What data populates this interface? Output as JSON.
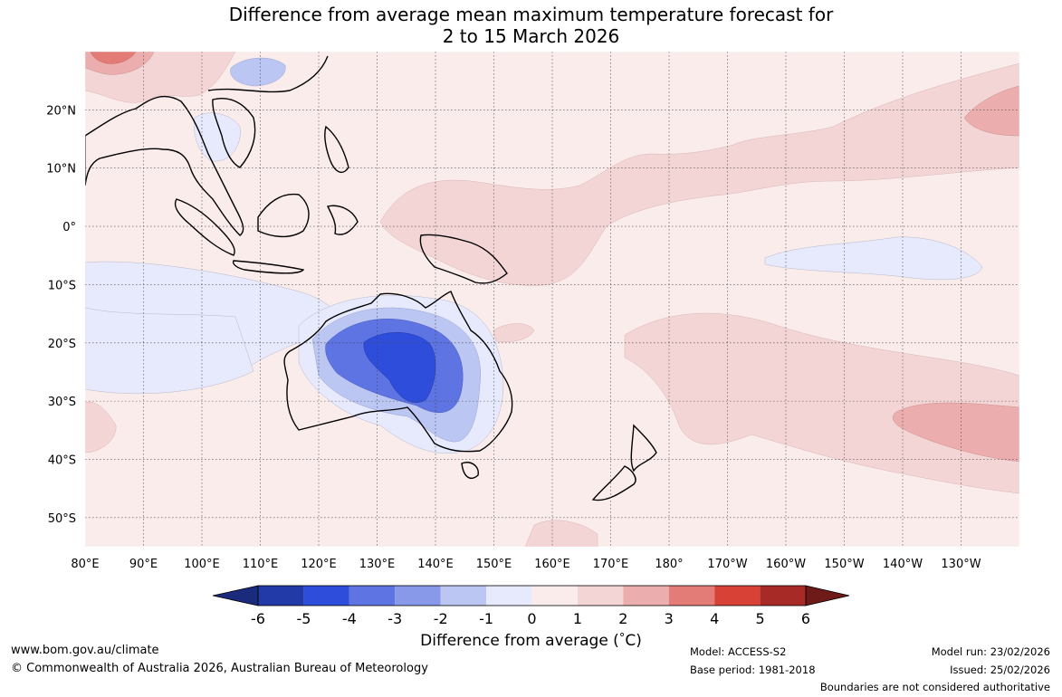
{
  "title": {
    "line1": "Difference from average mean maximum temperature forecast for",
    "line2": "2 to 15 March 2026"
  },
  "map": {
    "extent": {
      "lon_min": 80,
      "lon_max": 240,
      "lat_min": -55,
      "lat_max": 30
    },
    "lat_labels": [
      {
        "lat": 20,
        "label": "20°N"
      },
      {
        "lat": 10,
        "label": "10°N"
      },
      {
        "lat": 0,
        "label": "0°"
      },
      {
        "lat": -10,
        "label": "10°S"
      },
      {
        "lat": -20,
        "label": "20°S"
      },
      {
        "lat": -30,
        "label": "30°S"
      },
      {
        "lat": -40,
        "label": "40°S"
      },
      {
        "lat": -50,
        "label": "50°S"
      }
    ],
    "lon_labels": [
      {
        "lon": 80,
        "label": "80°E"
      },
      {
        "lon": 90,
        "label": "90°E"
      },
      {
        "lon": 100,
        "label": "100°E"
      },
      {
        "lon": 110,
        "label": "110°E"
      },
      {
        "lon": 120,
        "label": "120°E"
      },
      {
        "lon": 130,
        "label": "130°E"
      },
      {
        "lon": 140,
        "label": "140°E"
      },
      {
        "lon": 150,
        "label": "150°E"
      },
      {
        "lon": 160,
        "label": "160°E"
      },
      {
        "lon": 170,
        "label": "170°E"
      },
      {
        "lon": 180,
        "label": "180°"
      },
      {
        "lon": 190,
        "label": "170°W"
      },
      {
        "lon": 200,
        "label": "160°W"
      },
      {
        "lon": 210,
        "label": "150°W"
      },
      {
        "lon": 220,
        "label": "140°W"
      },
      {
        "lon": 230,
        "label": "130°W"
      }
    ],
    "anomaly_regions": [
      {
        "name": "central-australia",
        "value": -4,
        "color": "#2f4ddb"
      },
      {
        "name": "western-australia-ring",
        "value": -3,
        "color": "#5d74e2"
      },
      {
        "name": "inland-australia-ring",
        "value": -2,
        "color": "#bcc6f2"
      },
      {
        "name": "southern-australia-ring",
        "value": -1,
        "color": "#e6eafc"
      },
      {
        "name": "central-pacific-band",
        "value": 1,
        "color": "#f4d5d5"
      },
      {
        "name": "southeast-pacific",
        "value": 2,
        "color": "#ebadad"
      },
      {
        "name": "south-china",
        "value": 3,
        "color": "#e37c76"
      }
    ]
  },
  "colorbar": {
    "ticks": [
      "-6",
      "-5",
      "-4",
      "-3",
      "-2",
      "-1",
      "0",
      "1",
      "2",
      "3",
      "4",
      "5",
      "6"
    ],
    "colors": [
      "#223aa7",
      "#2f4ddb",
      "#5d74e2",
      "#8799e8",
      "#bcc6f2",
      "#e6eafc",
      "#fbecec",
      "#f4d5d5",
      "#ebadad",
      "#e37c76",
      "#d84236",
      "#a82a26"
    ],
    "low_extend_color": "#1a2b7d",
    "high_extend_color": "#6e1a18",
    "title": "Difference from average (",
    "title_unit": "°C",
    "title_end": ")"
  },
  "footer": {
    "website": "www.bom.gov.au/climate",
    "copyright": "© Commonwealth of Australia 2026, Australian Bureau of Meteorology",
    "model": "Model: ACCESS-S2",
    "base_period": "Base period: 1981-2018",
    "model_run": "Model run: 23/02/2026",
    "issued": "Issued: 25/02/2026",
    "disclaimer": "Boundaries are not considered authoritative"
  }
}
